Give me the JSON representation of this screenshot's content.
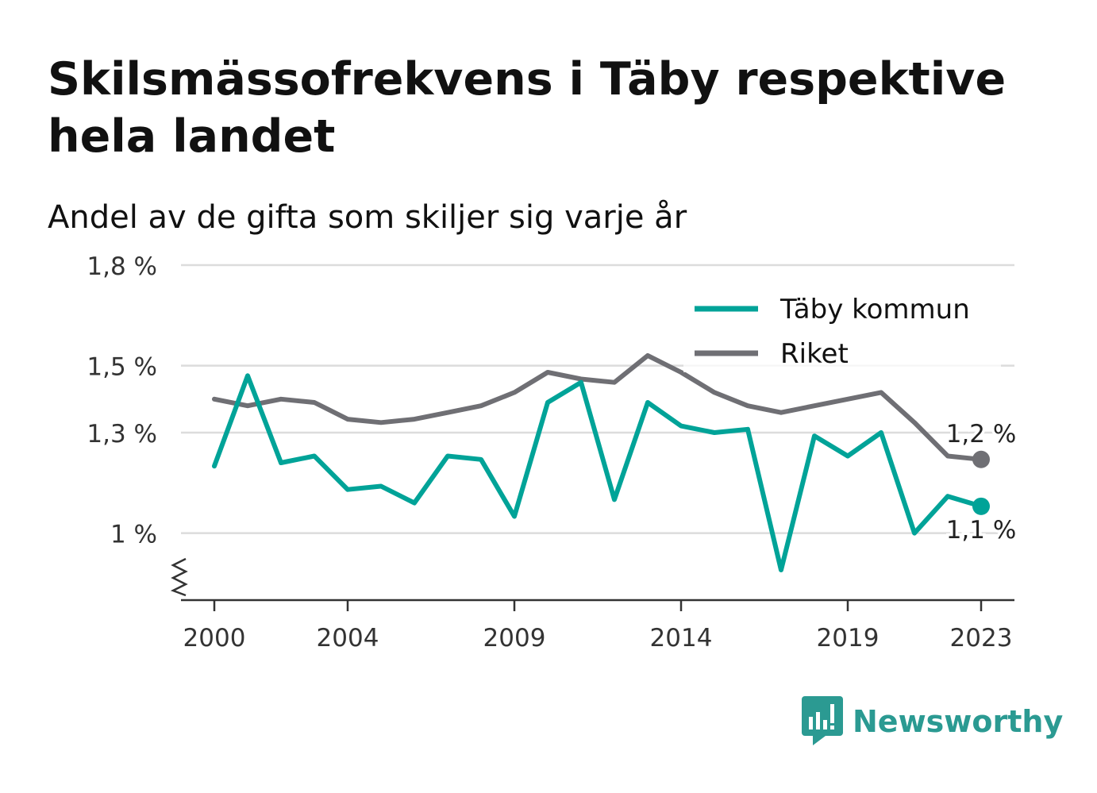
{
  "title": "Skilsmässofrekvens i Täby respektive hela landet",
  "subtitle": "Andel av de gifta som skiljer sig varje år",
  "brand": {
    "name": "Newsworthy",
    "icon": "newsworthy-logo-icon",
    "color": "#2b9a92"
  },
  "chart_data": {
    "type": "line",
    "title": "Skilsmässofrekvens i Täby respektive hela landet",
    "subtitle": "Andel av de gifta som skiljer sig varje år",
    "xlabel": "",
    "ylabel": "",
    "x": [
      2000,
      2001,
      2002,
      2003,
      2004,
      2005,
      2006,
      2007,
      2008,
      2009,
      2010,
      2011,
      2012,
      2013,
      2014,
      2015,
      2016,
      2017,
      2018,
      2019,
      2020,
      2021,
      2022,
      2023
    ],
    "x_tick_labels": [
      "2000",
      "2004",
      "2009",
      "2014",
      "2019",
      "2023"
    ],
    "x_tick_values": [
      2000,
      2004,
      2009,
      2014,
      2019,
      2023
    ],
    "y_tick_labels": [
      "1,8 %",
      "1,5 %",
      "1,3 %",
      "1 %"
    ],
    "y_tick_values": [
      1.8,
      1.5,
      1.3,
      1.0
    ],
    "xlim": [
      1999,
      2024
    ],
    "ylim": [
      0.8,
      1.8
    ],
    "y_axis_break": true,
    "grid": "horizontal",
    "legend_position": "top-right",
    "series": [
      {
        "name": "Täby kommun",
        "color": "#00a398",
        "values": [
          1.2,
          1.47,
          1.21,
          1.23,
          1.13,
          1.14,
          1.09,
          1.23,
          1.22,
          1.05,
          1.39,
          1.45,
          1.1,
          1.39,
          1.32,
          1.3,
          1.31,
          0.89,
          1.29,
          1.23,
          1.3,
          1.0,
          1.11,
          1.08
        ],
        "end_label": "1,1 %"
      },
      {
        "name": "Riket",
        "color": "#6f6f74",
        "values": [
          1.4,
          1.38,
          1.4,
          1.39,
          1.34,
          1.33,
          1.34,
          1.36,
          1.38,
          1.42,
          1.48,
          1.46,
          1.45,
          1.53,
          1.48,
          1.42,
          1.38,
          1.36,
          1.38,
          1.4,
          1.42,
          1.33,
          1.23,
          1.22
        ],
        "end_label": "1,2 %"
      }
    ]
  }
}
